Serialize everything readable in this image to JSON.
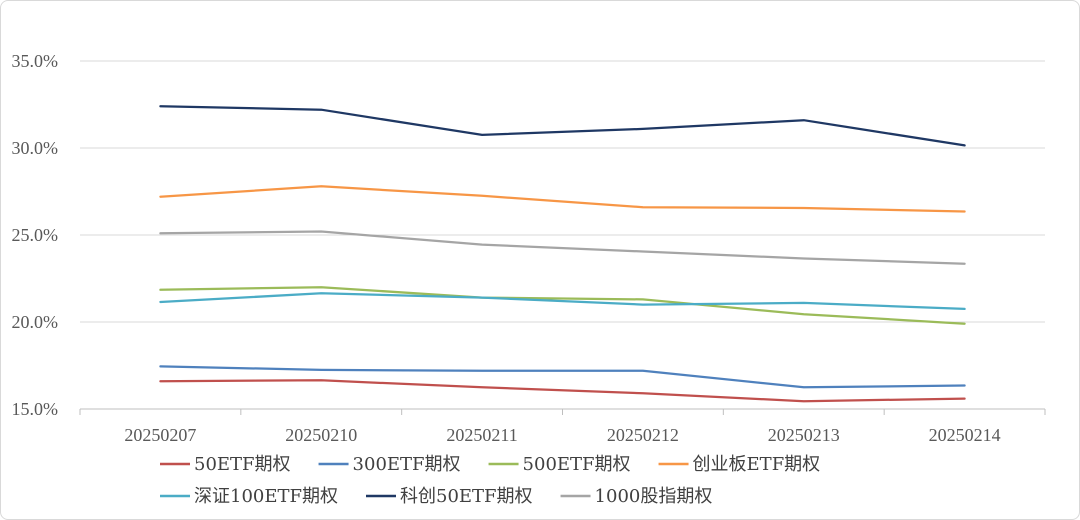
{
  "chart_data": {
    "type": "line",
    "title": "",
    "xlabel": "",
    "ylabel": "",
    "categories": [
      "20250207",
      "20250210",
      "20250211",
      "20250212",
      "20250213",
      "20250214"
    ],
    "y_tick_labels": [
      "15.0%",
      "20.0%",
      "25.0%",
      "30.0%",
      "35.0%"
    ],
    "ylim": [
      15,
      35
    ],
    "y_unit": "%",
    "grid": "horizontal",
    "legend_position": "bottom",
    "series": [
      {
        "name": "50ETF期权",
        "color": "#c0504d",
        "values": [
          16.6,
          16.65,
          16.25,
          15.9,
          15.45,
          15.6
        ]
      },
      {
        "name": "300ETF期权",
        "color": "#4f81bd",
        "values": [
          17.45,
          17.25,
          17.2,
          17.2,
          16.25,
          16.35
        ]
      },
      {
        "name": "500ETF期权",
        "color": "#9bbb59",
        "values": [
          21.85,
          22.0,
          21.4,
          21.3,
          20.45,
          19.9
        ]
      },
      {
        "name": "创业板ETF期权",
        "color": "#f79646",
        "values": [
          27.2,
          27.8,
          27.25,
          26.6,
          26.55,
          26.35
        ]
      },
      {
        "name": "深证100ETF期权",
        "color": "#4bacc6",
        "values": [
          21.15,
          21.65,
          21.4,
          21.0,
          21.1,
          20.75
        ]
      },
      {
        "name": "科创50ETF期权",
        "color": "#1f3864",
        "values": [
          32.4,
          32.2,
          30.75,
          31.1,
          31.6,
          30.15
        ]
      },
      {
        "name": "1000股指期权",
        "color": "#a5a5a5",
        "values": [
          25.1,
          25.2,
          24.45,
          24.05,
          23.65,
          23.35
        ]
      }
    ]
  }
}
